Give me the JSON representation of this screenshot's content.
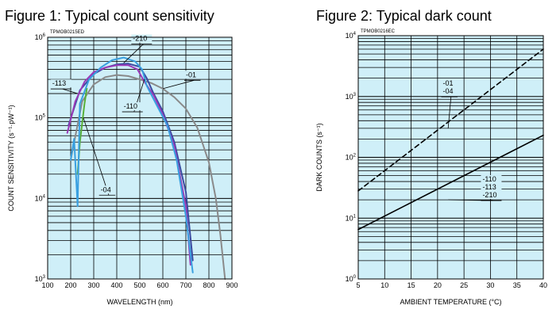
{
  "chart_data": [
    {
      "type": "line",
      "title": "Figure 1: Typical count sensitivity",
      "code": "TPMOB0215ED",
      "xlabel": "WAVELENGTH (nm)",
      "ylabel": "COUNT SENSITIVITY (s⁻¹·pW⁻¹)",
      "xlim": [
        100,
        900
      ],
      "ylim": [
        1000,
        1000000
      ],
      "yscale": "log",
      "grid": true,
      "x_ticks": [
        "100",
        "200",
        "300",
        "400",
        "500",
        "600",
        "700",
        "800",
        "900"
      ],
      "y_ticks": [
        {
          "value": 1000,
          "base": "10",
          "exp": "3"
        },
        {
          "value": 10000,
          "base": "10",
          "exp": "4"
        },
        {
          "value": 100000,
          "base": "10",
          "exp": "5"
        },
        {
          "value": 1000000,
          "base": "10",
          "exp": "6"
        }
      ],
      "series": [
        {
          "name": "-01",
          "color": "#8a8a8a",
          "points": [
            [
              200,
              30000
            ],
            [
              250,
              160000
            ],
            [
              300,
              260000
            ],
            [
              350,
              320000
            ],
            [
              400,
              340000
            ],
            [
              450,
              330000
            ],
            [
              500,
              300000
            ],
            [
              550,
              270000
            ],
            [
              600,
              230000
            ],
            [
              650,
              180000
            ],
            [
              700,
              130000
            ],
            [
              750,
              75000
            ],
            [
              800,
              28000
            ],
            [
              830,
              10000
            ],
            [
              850,
              3500
            ],
            [
              870,
              1000
            ]
          ]
        },
        {
          "name": "-04",
          "color": "#57b03a",
          "points": [
            [
              230,
              20000
            ],
            [
              240,
              50000
            ],
            [
              260,
              150000
            ],
            [
              270,
              230000
            ]
          ]
        },
        {
          "name": "-110",
          "color": "#3a4aa0",
          "points": [
            [
              190,
              80000
            ],
            [
              240,
              220000
            ],
            [
              300,
              350000
            ],
            [
              350,
              420000
            ],
            [
              400,
              460000
            ],
            [
              450,
              470000
            ],
            [
              500,
              430000
            ],
            [
              530,
              310000
            ],
            [
              560,
              200000
            ],
            [
              600,
              120000
            ],
            [
              650,
              50000
            ],
            [
              700,
              12000
            ],
            [
              730,
              1700
            ]
          ]
        },
        {
          "name": "-113",
          "color": "#9b3ab8",
          "points": [
            [
              185,
              65000
            ],
            [
              220,
              160000
            ],
            [
              260,
              280000
            ],
            [
              300,
              370000
            ],
            [
              350,
              420000
            ],
            [
              400,
              450000
            ],
            [
              450,
              450000
            ],
            [
              490,
              400000
            ],
            [
              520,
              280000
            ],
            [
              560,
              190000
            ],
            [
              600,
              110000
            ],
            [
              650,
              45000
            ],
            [
              700,
              8000
            ],
            [
              720,
              1500
            ]
          ]
        },
        {
          "name": "-210",
          "color": "#3aa0e0",
          "points": [
            [
              200,
              30000
            ],
            [
              215,
              55000
            ],
            [
              230,
              8000
            ],
            [
              240,
              150000
            ],
            [
              280,
              300000
            ],
            [
              330,
              420000
            ],
            [
              380,
              520000
            ],
            [
              430,
              560000
            ],
            [
              480,
              500000
            ],
            [
              510,
              400000
            ],
            [
              530,
              250000
            ],
            [
              570,
              150000
            ],
            [
              620,
              80000
            ],
            [
              660,
              30000
            ],
            [
              700,
              6000
            ],
            [
              730,
              1200
            ]
          ]
        }
      ],
      "annotations": [
        {
          "text": "-210",
          "series": "-210",
          "target": [
            430,
            480000
          ],
          "label_at": [
            470,
            900000
          ]
        },
        {
          "text": "-113",
          "series": "-113",
          "target": [
            230,
            200000
          ],
          "label_at": [
            120,
            250000
          ]
        },
        {
          "text": "-01",
          "series": "-01",
          "target": [
            600,
            230000
          ],
          "label_at": [
            700,
            320000
          ]
        },
        {
          "text": "-110",
          "series": "-110",
          "target": [
            520,
            300000
          ],
          "label_at": [
            430,
            130000
          ]
        },
        {
          "text": "-04",
          "series": "-04",
          "target": [
            255,
            100000
          ],
          "label_at": [
            330,
            12000
          ]
        }
      ]
    },
    {
      "type": "line",
      "title": "Figure 2: Typical dark count",
      "code": "TPMOB0216EC",
      "xlabel": "AMBIENT TEMPERATURE (°C)",
      "ylabel": "DARK COUNTS (s⁻¹)",
      "xlim": [
        5,
        40
      ],
      "ylim": [
        1,
        10000
      ],
      "yscale": "log",
      "grid": true,
      "x_ticks": [
        "5",
        "10",
        "15",
        "20",
        "25",
        "30",
        "35",
        "40"
      ],
      "y_ticks": [
        {
          "value": 1,
          "base": "10",
          "exp": "0"
        },
        {
          "value": 10,
          "base": "10",
          "exp": "1"
        },
        {
          "value": 100,
          "base": "10",
          "exp": "2"
        },
        {
          "value": 1000,
          "base": "10",
          "exp": "3"
        },
        {
          "value": 10000,
          "base": "10",
          "exp": "4"
        }
      ],
      "series": [
        {
          "name": "-01, -04",
          "color": "#000000",
          "dash": "6,4",
          "points": [
            [
              5,
              28
            ],
            [
              40,
              6000
            ]
          ]
        },
        {
          "name": "-110, -113, -210",
          "color": "#000000",
          "dash": "",
          "points": [
            [
              5,
              6.5
            ],
            [
              40,
              230
            ]
          ]
        }
      ],
      "annotations": [
        {
          "lines": [
            "-01",
            "-04"
          ],
          "target": [
            22,
            300
          ],
          "label_at": [
            21,
            1500
          ]
        },
        {
          "lines": [
            "-110",
            "-113",
            "-210"
          ],
          "target": [
            22,
            20
          ],
          "label_at": [
            28.5,
            40
          ]
        }
      ]
    }
  ]
}
